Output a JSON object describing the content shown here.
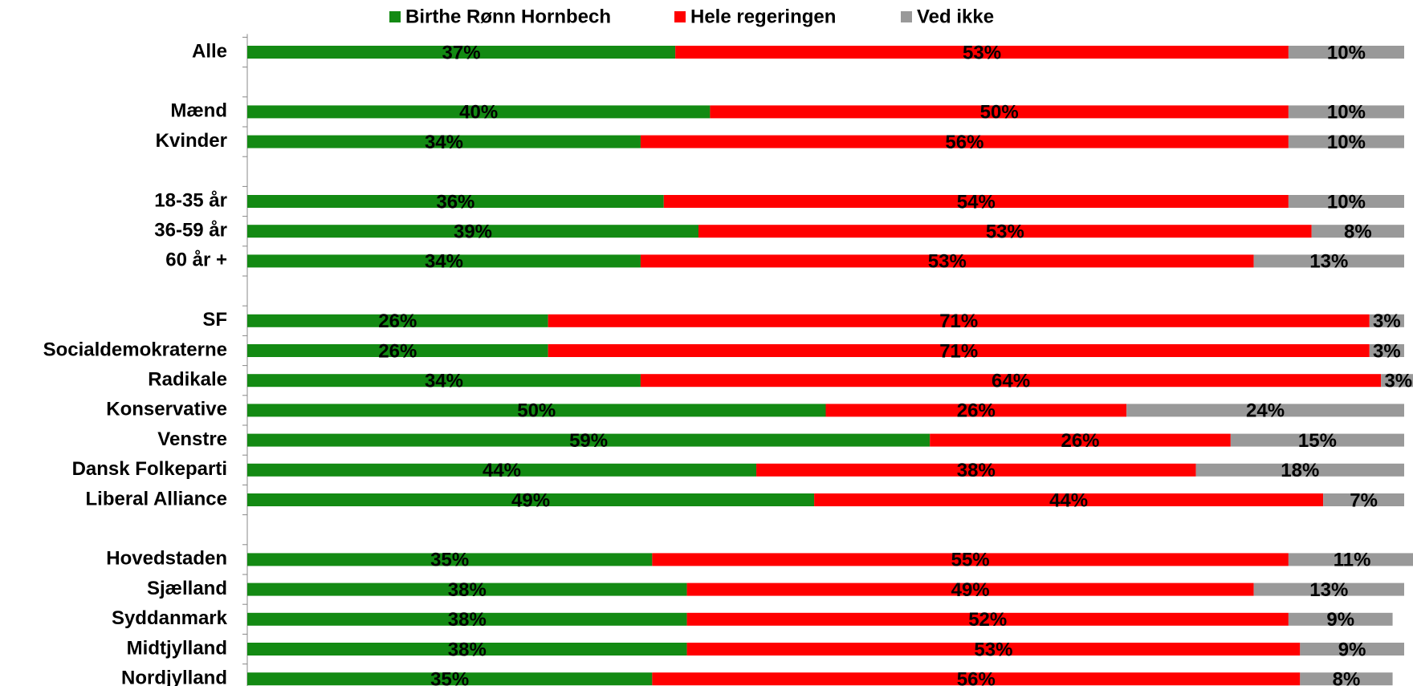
{
  "chart_data": {
    "type": "stacked-bar-horizontal",
    "categories": [
      "Alle",
      null,
      "Mænd",
      "Kvinder",
      null,
      "18-35 år",
      "36-59 år",
      "60 år +",
      null,
      "SF",
      "Socialdemokraterne",
      "Radikale",
      "Konservative",
      "Venstre",
      "Dansk Folkeparti",
      "Liberal Alliance",
      null,
      "Hovedstaden",
      "Sjælland",
      "Syddanmark",
      "Midtjylland",
      "Nordjylland"
    ],
    "series": [
      {
        "name": "Birthe Rønn Hornbech",
        "color": "#138a13",
        "values": [
          37,
          null,
          40,
          34,
          null,
          36,
          39,
          34,
          null,
          26,
          26,
          34,
          50,
          59,
          44,
          49,
          null,
          35,
          38,
          38,
          38,
          35
        ],
        "value_labels": [
          "37%",
          null,
          "40%",
          "34%",
          null,
          "36%",
          "39%",
          "34%",
          null,
          "26%",
          "26%",
          "34%",
          "50%",
          "59%",
          "44%",
          "49%",
          null,
          "35%",
          "38%",
          "38%",
          "38%",
          "35%"
        ]
      },
      {
        "name": "Hele regeringen",
        "color": "#ff0000",
        "values": [
          53,
          null,
          50,
          56,
          null,
          54,
          53,
          53,
          null,
          71,
          71,
          64,
          26,
          26,
          38,
          44,
          null,
          55,
          49,
          52,
          53,
          56
        ],
        "value_labels": [
          "53%",
          null,
          "50%",
          "56%",
          null,
          "54%",
          "53%",
          "53%",
          null,
          "71%",
          "71%",
          "64%",
          "26%",
          "26%",
          "38%",
          "44%",
          null,
          "55%",
          "49%",
          "52%",
          "53%",
          "56%"
        ]
      },
      {
        "name": "Ved ikke",
        "color": "#999999",
        "values": [
          10,
          null,
          10,
          10,
          null,
          10,
          8,
          13,
          null,
          3,
          3,
          3,
          24,
          15,
          18,
          7,
          null,
          11,
          13,
          9,
          9,
          8
        ],
        "value_labels": [
          "10%",
          null,
          "10%",
          "10%",
          null,
          "10%",
          "8%",
          "13%",
          null,
          "3%",
          "3%",
          "3%",
          "24%",
          "15%",
          "18%",
          "7%",
          null,
          "11%",
          "13%",
          "9%",
          "9%",
          "8%"
        ]
      }
    ],
    "xlim": [
      0,
      100
    ],
    "legend": "top"
  }
}
